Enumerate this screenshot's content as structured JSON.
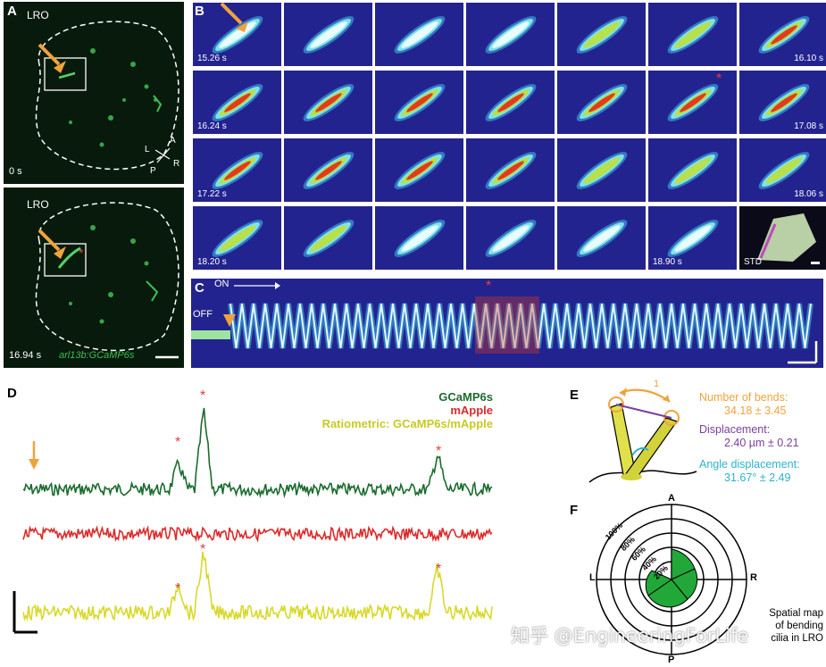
{
  "panels": {
    "A": {
      "letter": "A",
      "region_label": "LRO",
      "time_top": "0 s",
      "time_bottom": "16.94 s",
      "transgene_label": "arl13b:GCaMP6s",
      "axis": {
        "a": "A",
        "p": "P",
        "l": "L",
        "r": "R"
      }
    },
    "B": {
      "letter": "B",
      "tiles": [
        {
          "label": "15.26 s",
          "pos": "left"
        },
        {
          "label": ""
        },
        {
          "label": ""
        },
        {
          "label": ""
        },
        {
          "label": ""
        },
        {
          "label": ""
        },
        {
          "label": "16.10 s",
          "pos": "right"
        },
        {
          "label": "16.24 s",
          "pos": "left"
        },
        {
          "label": ""
        },
        {
          "label": ""
        },
        {
          "label": ""
        },
        {
          "label": ""
        },
        {
          "label": ""
        },
        {
          "label": "17.08 s",
          "pos": "right"
        },
        {
          "label": "17.22 s",
          "pos": "left"
        },
        {
          "label": ""
        },
        {
          "label": ""
        },
        {
          "label": ""
        },
        {
          "label": ""
        },
        {
          "label": ""
        },
        {
          "label": "18.06 s",
          "pos": "right"
        },
        {
          "label": "18.20 s",
          "pos": "left"
        },
        {
          "label": ""
        },
        {
          "label": ""
        },
        {
          "label": ""
        },
        {
          "label": ""
        },
        {
          "label": "18.90 s",
          "pos": "left"
        },
        {
          "label": "STD",
          "pos": "left"
        }
      ]
    },
    "C": {
      "letter": "C",
      "on_label": "ON",
      "off_label": "OFF"
    },
    "D": {
      "letter": "D",
      "legend": {
        "gcamp": "GCaMP6s",
        "mapple": "mApple",
        "ratio": "Ratiometric: GCaMP6s/mApple"
      }
    },
    "E": {
      "letter": "E",
      "bends_label": "Number of bends:",
      "bends_value": "34.18 ± 3.45",
      "disp_label": "Displacement:",
      "disp_value": "2.40 µm ± 0.21",
      "angle_label": "Angle displacement:",
      "angle_value": "31.67° ± 2.49",
      "one_label": "1"
    },
    "F": {
      "letter": "F",
      "rings": [
        "100%",
        "80%",
        "60%",
        "40%",
        "20%"
      ],
      "axis": {
        "a": "A",
        "p": "P",
        "l": "L",
        "r": "R"
      },
      "caption_lines": [
        "Spatial map",
        "of bending",
        "cilia in LRO"
      ]
    }
  },
  "watermark": "知乎 @EngineeringForLife",
  "colors": {
    "orange": "#f0a33c",
    "gcamp": "#1b6b2e",
    "mapple": "#dc2b2b",
    "ratio": "#d8d82a",
    "purple": "#7b3f9e",
    "cyan": "#2bb3c8"
  }
}
